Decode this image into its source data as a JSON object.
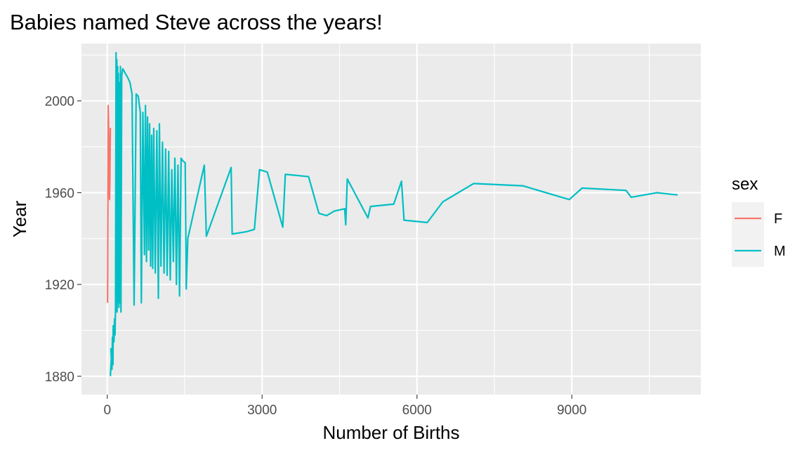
{
  "chart_data": {
    "type": "line",
    "title": "Babies named Steve across the years!",
    "xlabel": "Number of Births",
    "ylabel": "Year",
    "xlim": [
      -500,
      11500
    ],
    "ylim": [
      1872,
      2025
    ],
    "x_ticks": [
      0,
      3000,
      6000,
      9000
    ],
    "x_tick_labels": [
      "0",
      "3000",
      "6000",
      "9000"
    ],
    "y_ticks": [
      1880,
      1920,
      1960,
      2000
    ],
    "y_tick_labels": [
      "1880",
      "1920",
      "1960",
      "2000"
    ],
    "grid": true,
    "legend": {
      "title": "sex",
      "position": "right"
    },
    "series": [
      {
        "name": "F",
        "color": "#F8766D",
        "points": [
          [
            5,
            1912
          ],
          [
            8,
            1925
          ],
          [
            10,
            1940
          ],
          [
            12,
            1955
          ],
          [
            15,
            1975
          ],
          [
            18,
            1998
          ],
          [
            25,
            1990
          ],
          [
            30,
            1980
          ],
          [
            35,
            1972
          ],
          [
            40,
            1960
          ],
          [
            45,
            1957
          ],
          [
            50,
            1965
          ],
          [
            55,
            1978
          ],
          [
            60,
            1988
          ],
          [
            50,
            1970
          ],
          [
            42,
            1962
          ]
        ]
      },
      {
        "name": "M",
        "color": "#00BFC4",
        "points": [
          [
            60,
            1880
          ],
          [
            80,
            1888
          ],
          [
            70,
            1892
          ],
          [
            90,
            1883
          ],
          [
            100,
            1897
          ],
          [
            110,
            1885
          ],
          [
            115,
            1902
          ],
          [
            130,
            1895
          ],
          [
            140,
            1905
          ],
          [
            150,
            1898
          ],
          [
            160,
            1910
          ],
          [
            170,
            2021
          ],
          [
            180,
            1912
          ],
          [
            185,
            2018
          ],
          [
            190,
            1908
          ],
          [
            200,
            2015
          ],
          [
            210,
            1912
          ],
          [
            215,
            2012
          ],
          [
            225,
            1910
          ],
          [
            230,
            2008
          ],
          [
            245,
            1912
          ],
          [
            255,
            2015
          ],
          [
            265,
            1908
          ],
          [
            280,
            2011
          ],
          [
            300,
            2014
          ],
          [
            350,
            2012
          ],
          [
            400,
            2010
          ],
          [
            440,
            2008
          ],
          [
            480,
            2003
          ],
          [
            520,
            1911
          ],
          [
            560,
            2003
          ],
          [
            600,
            2002
          ],
          [
            640,
            1995
          ],
          [
            660,
            1912
          ],
          [
            690,
            1995
          ],
          [
            720,
            1933
          ],
          [
            740,
            1998
          ],
          [
            760,
            1930
          ],
          [
            780,
            1993
          ],
          [
            800,
            1935
          ],
          [
            820,
            1990
          ],
          [
            840,
            1928
          ],
          [
            860,
            1985
          ],
          [
            880,
            1927
          ],
          [
            900,
            1988
          ],
          [
            930,
            1925
          ],
          [
            960,
            1987
          ],
          [
            990,
            1914
          ],
          [
            1010,
            1990
          ],
          [
            1040,
            1928
          ],
          [
            1070,
            1982
          ],
          [
            1100,
            1925
          ],
          [
            1130,
            1979
          ],
          [
            1160,
            1924
          ],
          [
            1190,
            1978
          ],
          [
            1220,
            1922
          ],
          [
            1250,
            1970
          ],
          [
            1280,
            1930
          ],
          [
            1310,
            1975
          ],
          [
            1340,
            1920
          ],
          [
            1370,
            1972
          ],
          [
            1400,
            1915
          ],
          [
            1430,
            1975
          ],
          [
            1460,
            1974
          ],
          [
            1510,
            1973
          ],
          [
            1530,
            1918
          ],
          [
            1560,
            1940
          ],
          [
            1880,
            1972
          ],
          [
            1920,
            1941
          ],
          [
            2400,
            1971
          ],
          [
            2420,
            1942
          ],
          [
            2700,
            1943
          ],
          [
            2850,
            1944
          ],
          [
            2950,
            1970
          ],
          [
            3100,
            1969
          ],
          [
            3400,
            1945
          ],
          [
            3450,
            1968
          ],
          [
            3900,
            1967
          ],
          [
            4100,
            1951
          ],
          [
            4250,
            1950
          ],
          [
            4400,
            1952
          ],
          [
            4600,
            1953
          ],
          [
            4620,
            1946
          ],
          [
            4650,
            1966
          ],
          [
            5050,
            1949
          ],
          [
            5100,
            1954
          ],
          [
            5550,
            1955
          ],
          [
            5700,
            1965
          ],
          [
            5750,
            1948
          ],
          [
            6200,
            1947
          ],
          [
            6500,
            1956
          ],
          [
            7100,
            1964
          ],
          [
            8050,
            1963
          ],
          [
            8950,
            1957
          ],
          [
            9200,
            1962
          ],
          [
            10050,
            1961
          ],
          [
            10150,
            1958
          ],
          [
            10650,
            1960
          ],
          [
            11050,
            1959
          ]
        ]
      }
    ]
  }
}
